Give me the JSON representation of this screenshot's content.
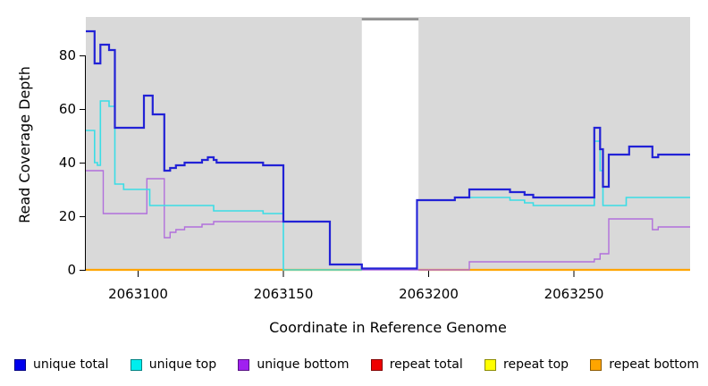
{
  "chart_data": {
    "type": "line",
    "step": true,
    "title": "",
    "xlabel": "Coordinate in Reference Genome",
    "ylabel": "Read Coverage Depth",
    "x_domain": [
      2063082,
      2063290
    ],
    "y_domain": [
      0,
      94
    ],
    "x_ticks": [
      2063100,
      2063150,
      2063200,
      2063250
    ],
    "y_ticks": [
      0,
      20,
      40,
      60,
      80
    ],
    "grid": "off",
    "plot_bg": "#d9d9d9",
    "axis_color": "#000000",
    "legend_position": "bottom",
    "masked_region": {
      "start": 2063177,
      "end": 2063196.5,
      "color": "#ffffff",
      "top_border_color": "#878787"
    },
    "draw_order": [
      "repeat total",
      "repeat top",
      "repeat bottom",
      "unique bottom",
      "unique top",
      "unique total"
    ],
    "series": [
      {
        "name": "unique total",
        "color": "#0000ee",
        "line_color": "#2222d6",
        "line_width": 2.2,
        "broken_by_mask": false,
        "points": [
          [
            2063082,
            89
          ],
          [
            2063085,
            77
          ],
          [
            2063087,
            84
          ],
          [
            2063090,
            82
          ],
          [
            2063092,
            53
          ],
          [
            2063102,
            65
          ],
          [
            2063105,
            58
          ],
          [
            2063109,
            37
          ],
          [
            2063111,
            38
          ],
          [
            2063113,
            39
          ],
          [
            2063116,
            40
          ],
          [
            2063122,
            41
          ],
          [
            2063124,
            42
          ],
          [
            2063126,
            41
          ],
          [
            2063127,
            40
          ],
          [
            2063143,
            39
          ],
          [
            2063150,
            18
          ],
          [
            2063166,
            2
          ],
          [
            2063177,
            0.5
          ],
          [
            2063196,
            26
          ],
          [
            2063209,
            27
          ],
          [
            2063214,
            30
          ],
          [
            2063228,
            29
          ],
          [
            2063233,
            28
          ],
          [
            2063236,
            27
          ],
          [
            2063257,
            53
          ],
          [
            2063259,
            45
          ],
          [
            2063260,
            31
          ],
          [
            2063262,
            43
          ],
          [
            2063269,
            46
          ],
          [
            2063277,
            42
          ],
          [
            2063279,
            43
          ]
        ]
      },
      {
        "name": "unique top",
        "color": "#00eeee",
        "line_color": "#3adde6",
        "line_width": 1.6,
        "broken_by_mask": true,
        "points": [
          [
            2063082,
            52
          ],
          [
            2063085,
            40
          ],
          [
            2063086,
            39
          ],
          [
            2063087,
            63
          ],
          [
            2063090,
            61
          ],
          [
            2063092,
            32
          ],
          [
            2063095,
            30
          ],
          [
            2063104,
            24
          ],
          [
            2063126,
            22
          ],
          [
            2063143,
            21
          ],
          [
            2063150,
            0
          ],
          [
            2063196,
            26
          ],
          [
            2063209,
            27
          ],
          [
            2063228,
            26
          ],
          [
            2063233,
            25
          ],
          [
            2063236,
            24
          ],
          [
            2063257,
            48
          ],
          [
            2063259,
            37
          ],
          [
            2063260,
            24
          ],
          [
            2063268,
            27
          ]
        ]
      },
      {
        "name": "unique bottom",
        "color": "#a020f0",
        "line_color": "#b16fdc",
        "line_width": 1.4,
        "broken_by_mask": false,
        "points": [
          [
            2063082,
            37
          ],
          [
            2063088,
            21
          ],
          [
            2063103,
            34
          ],
          [
            2063109,
            12
          ],
          [
            2063111,
            14
          ],
          [
            2063113,
            15
          ],
          [
            2063116,
            16
          ],
          [
            2063122,
            17
          ],
          [
            2063126,
            18
          ],
          [
            2063166,
            2
          ],
          [
            2063177,
            0
          ],
          [
            2063214,
            3
          ],
          [
            2063257,
            4
          ],
          [
            2063259,
            6
          ],
          [
            2063262,
            19
          ],
          [
            2063277,
            15
          ],
          [
            2063279,
            16
          ]
        ]
      },
      {
        "name": "repeat total",
        "color": "#ee0000",
        "line_color": "#dd0000",
        "line_width": 1.5,
        "broken_by_mask": false,
        "points": [
          [
            2063082,
            0
          ]
        ]
      },
      {
        "name": "repeat top",
        "color": "#ffff00",
        "line_color": "#ffff00",
        "line_width": 1.5,
        "broken_by_mask": false,
        "points": [
          [
            2063082,
            0
          ]
        ]
      },
      {
        "name": "repeat bottom",
        "color": "#ffa500",
        "line_color": "#ffa500",
        "line_width": 2.2,
        "broken_by_mask": false,
        "points": [
          [
            2063082,
            0
          ]
        ]
      }
    ]
  }
}
